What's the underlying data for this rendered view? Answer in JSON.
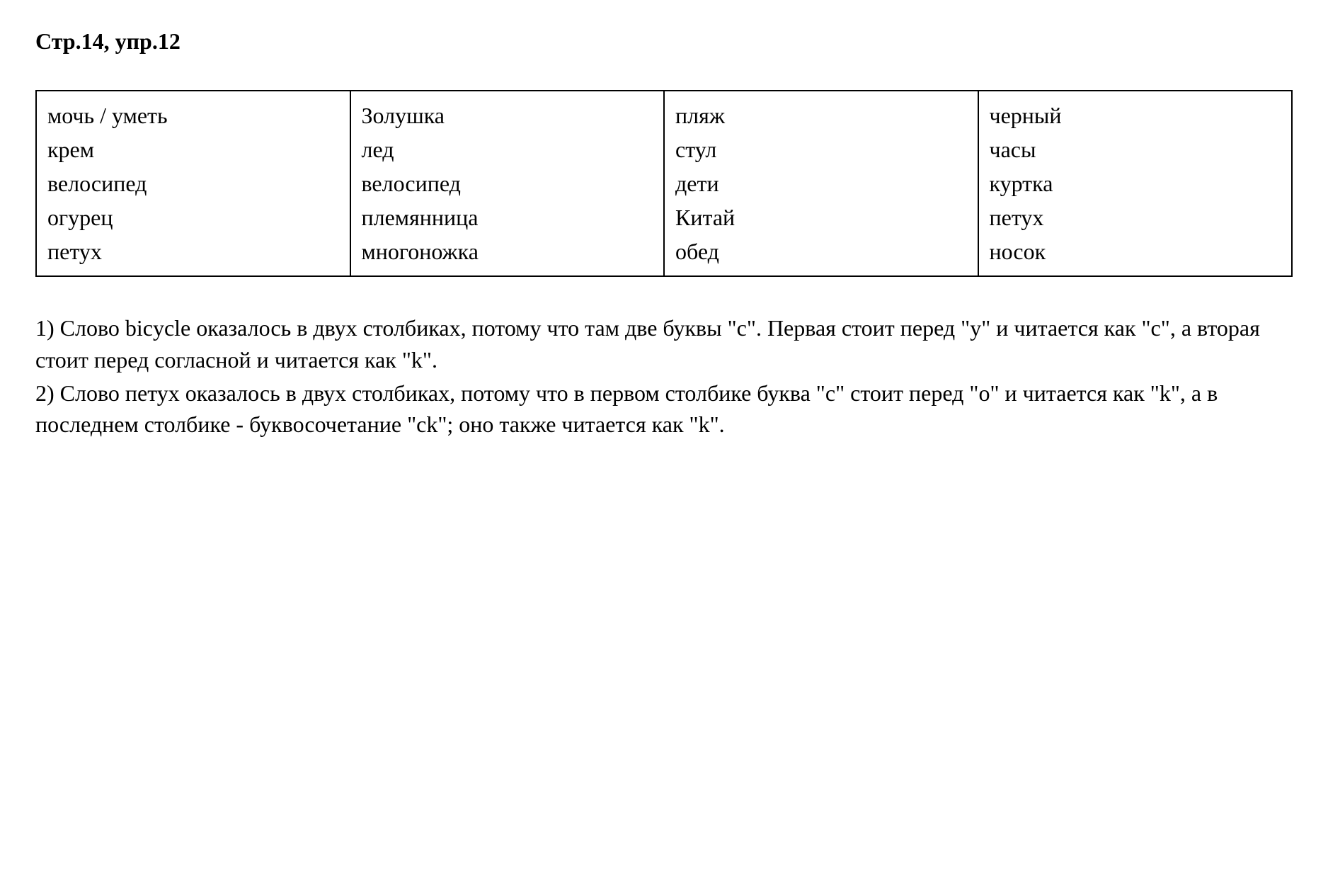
{
  "header": {
    "text": "Стр.14, упр.12"
  },
  "table": {
    "columns": [
      {
        "items": [
          "мочь / уметь",
          "крем",
          "велосипед",
          "огурец",
          "петух"
        ]
      },
      {
        "items": [
          "Золушка",
          "лед",
          "велосипед",
          "племянница",
          "многоножка"
        ]
      },
      {
        "items": [
          "пляж",
          "стул",
          "дети",
          "Китай",
          "обед"
        ]
      },
      {
        "items": [
          "черный",
          "часы",
          "куртка",
          "петух",
          "носок"
        ]
      }
    ],
    "border_color": "#000000",
    "border_width": 2
  },
  "answers": {
    "item1": "1) Слово bicycle оказалось в двух столбиках, потому что там две буквы \"c\". Первая стоит перед \"y\" и читается как \"с\", а вторая стоит перед согласной и читается как \"k\".",
    "item2": "2) Слово петух оказалось в двух столбиках, потому что в первом столбике буква \"c\" стоит перед \"o\" и читается как \"k\", а в последнем столбике - буквосочетание \"ck\"; оно также читается как \"k\"."
  },
  "typography": {
    "font_family": "Times New Roman",
    "base_fontsize": 32,
    "header_weight": "bold",
    "text_color": "#000000",
    "background_color": "#ffffff"
  }
}
